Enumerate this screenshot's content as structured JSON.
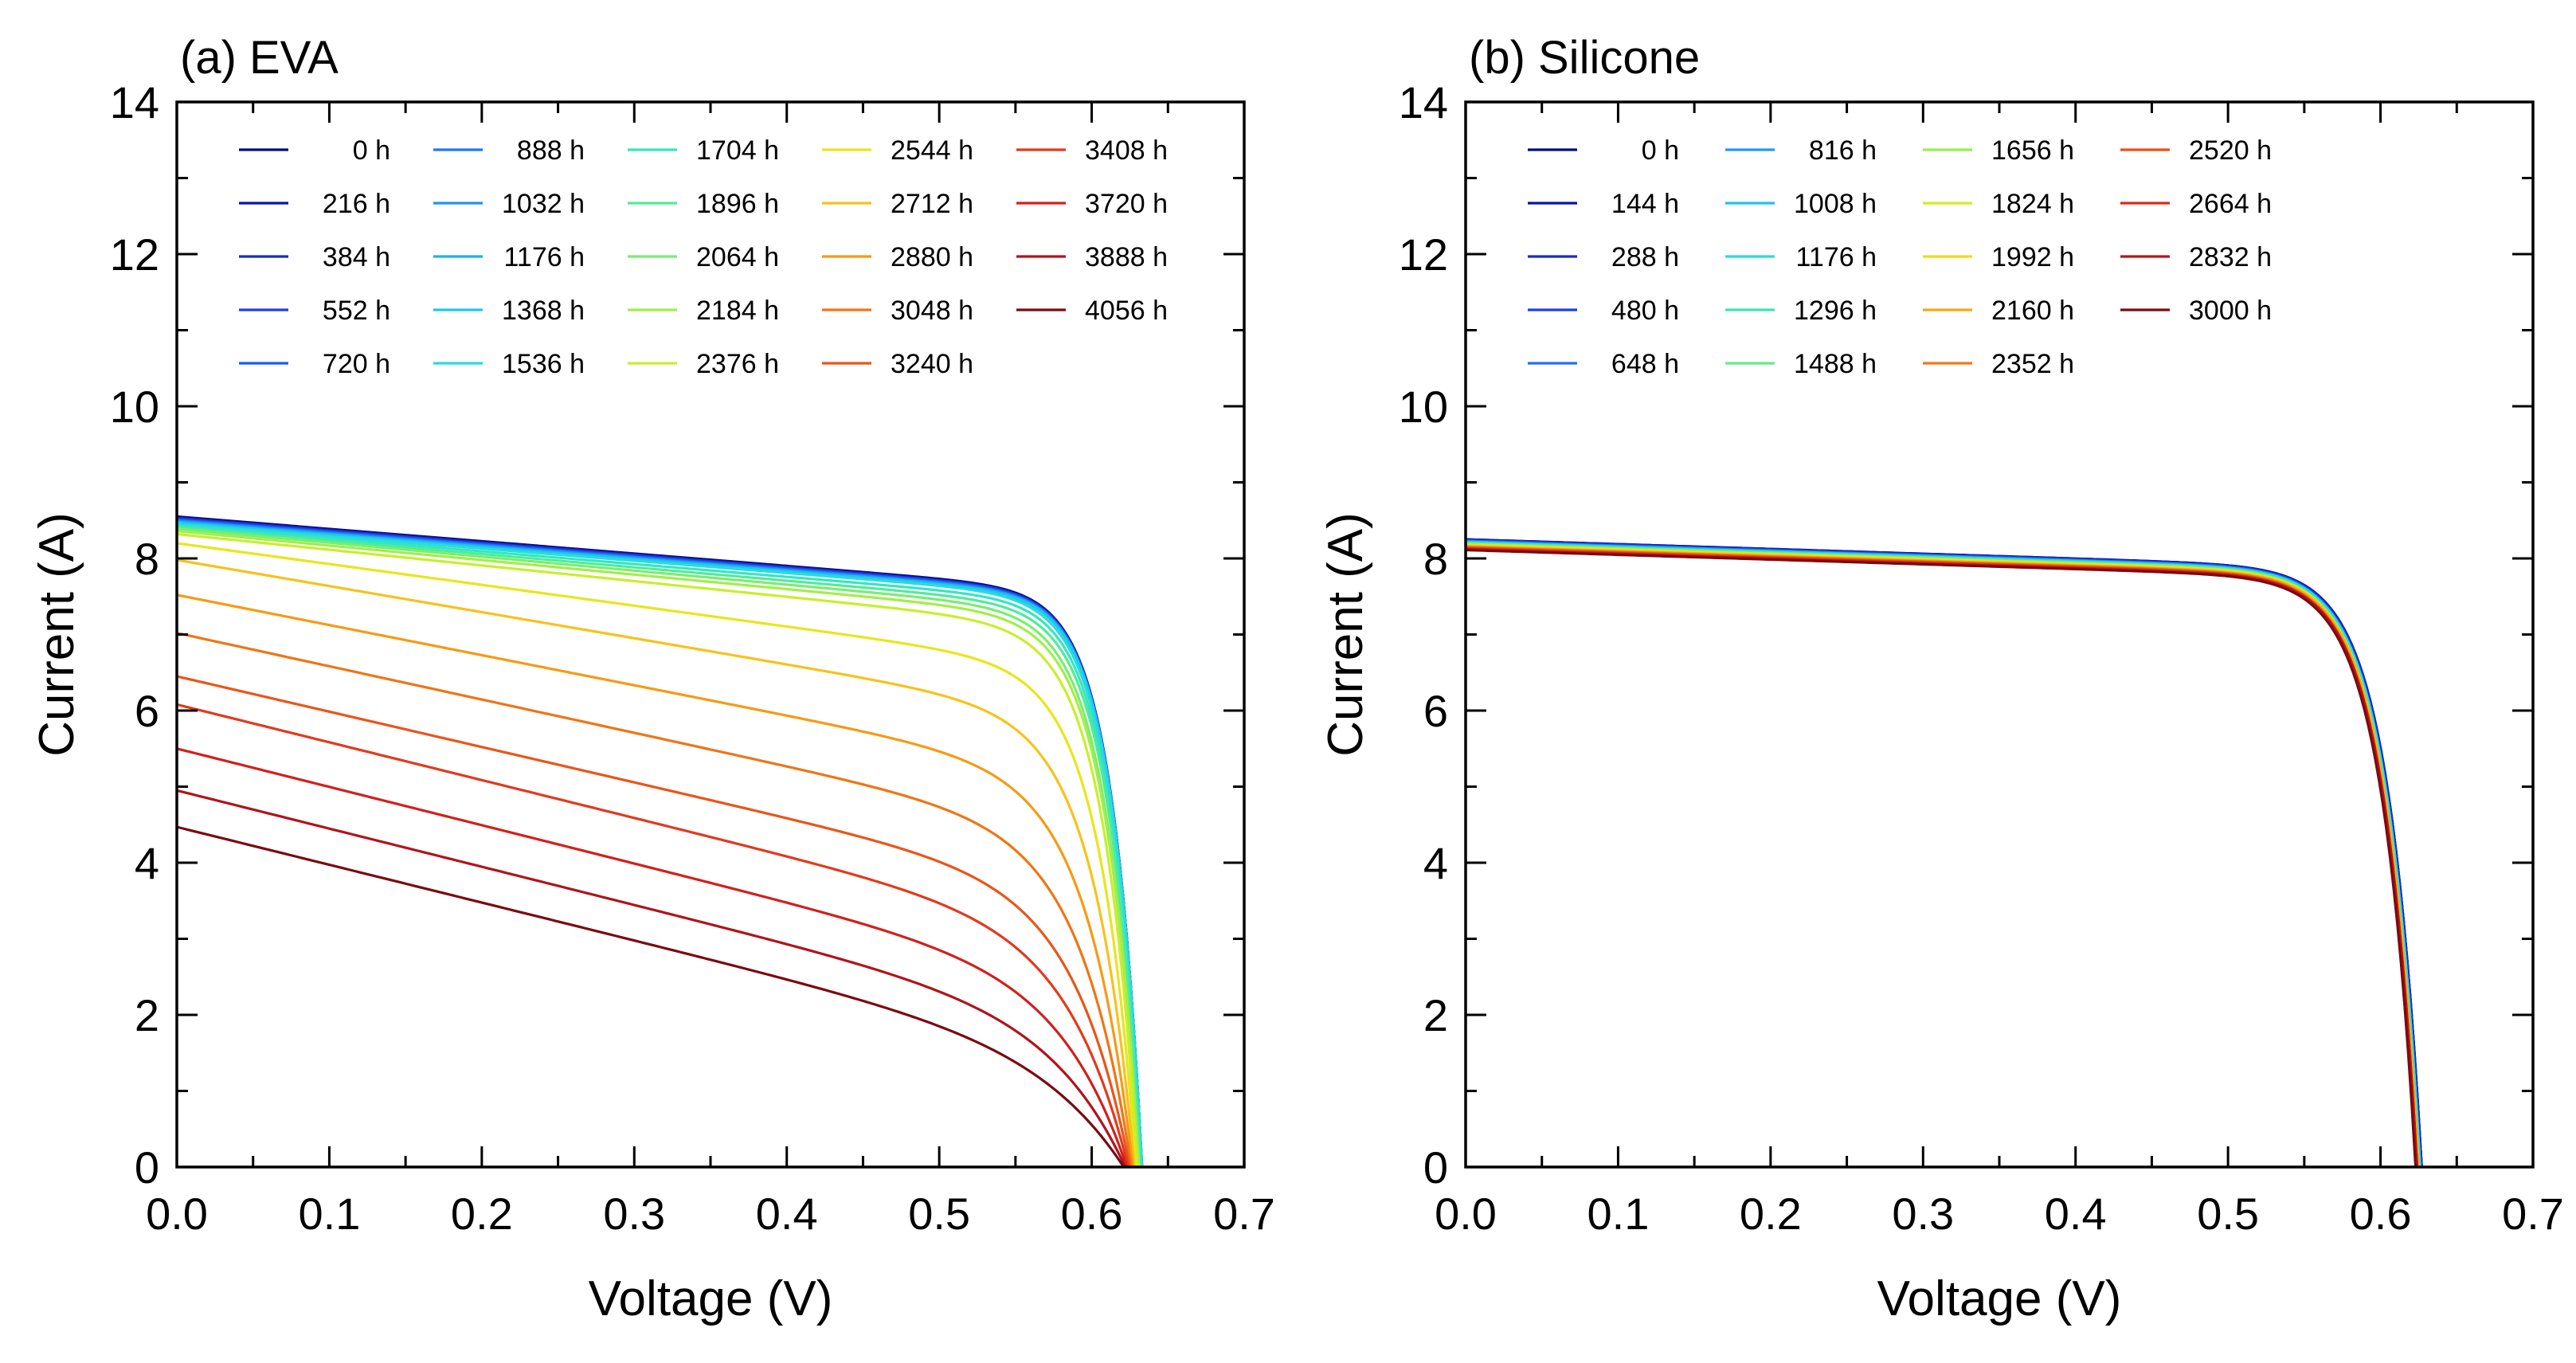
{
  "chart_data": [
    {
      "type": "line",
      "title": "(a) EVA",
      "xlabel": "Voltage (V)",
      "ylabel": "Current (A)",
      "xlim": [
        0.0,
        0.7
      ],
      "ylim": [
        0,
        14
      ],
      "xticks": [
        0.0,
        0.1,
        0.2,
        0.3,
        0.4,
        0.5,
        0.6,
        0.7
      ],
      "xtick_labels": [
        "0.0",
        "0.1",
        "0.2",
        "0.3",
        "0.4",
        "0.5",
        "0.6",
        "0.7"
      ],
      "yticks": [
        0,
        2,
        4,
        6,
        8,
        10,
        12,
        14
      ],
      "ytick_labels": [
        "0",
        "2",
        "4",
        "6",
        "8",
        "10",
        "12",
        "14"
      ],
      "legend_position": "top",
      "legend_columns": 5,
      "grid": false,
      "series": [
        {
          "name": "0 h",
          "color": "#000c7a",
          "isc": 8.55,
          "voc": 0.633,
          "s": 0.15,
          "k": 0.2
        },
        {
          "name": "216 h",
          "color": "#0a14a6",
          "isc": 8.54,
          "voc": 0.633,
          "s": 0.15,
          "k": 0.2
        },
        {
          "name": "384 h",
          "color": "#1a2bc8",
          "isc": 8.53,
          "voc": 0.633,
          "s": 0.15,
          "k": 0.2
        },
        {
          "name": "552 h",
          "color": "#1f3fe0",
          "isc": 8.52,
          "voc": 0.633,
          "s": 0.15,
          "k": 0.2
        },
        {
          "name": "720 h",
          "color": "#1a5cf2",
          "isc": 8.51,
          "voc": 0.633,
          "s": 0.15,
          "k": 0.2
        },
        {
          "name": "888 h",
          "color": "#1f78f5",
          "isc": 8.5,
          "voc": 0.633,
          "s": 0.15,
          "k": 0.2
        },
        {
          "name": "1032 h",
          "color": "#1f95f2",
          "isc": 8.49,
          "voc": 0.633,
          "s": 0.15,
          "k": 0.2
        },
        {
          "name": "1176 h",
          "color": "#1fb0ee",
          "isc": 8.48,
          "voc": 0.633,
          "s": 0.15,
          "k": 0.2
        },
        {
          "name": "1368 h",
          "color": "#1fc8e8",
          "isc": 8.47,
          "voc": 0.633,
          "s": 0.15,
          "k": 0.2
        },
        {
          "name": "1536 h",
          "color": "#28dcdc",
          "isc": 8.45,
          "voc": 0.633,
          "s": 0.16,
          "k": 0.2
        },
        {
          "name": "1704 h",
          "color": "#34e6c0",
          "isc": 8.43,
          "voc": 0.632,
          "s": 0.16,
          "k": 0.21
        },
        {
          "name": "1896 h",
          "color": "#50eb9a",
          "isc": 8.41,
          "voc": 0.632,
          "s": 0.17,
          "k": 0.22
        },
        {
          "name": "2064 h",
          "color": "#78ee70",
          "isc": 8.39,
          "voc": 0.631,
          "s": 0.18,
          "k": 0.23
        },
        {
          "name": "2184 h",
          "color": "#a2ee4a",
          "isc": 8.36,
          "voc": 0.631,
          "s": 0.19,
          "k": 0.24
        },
        {
          "name": "2376 h",
          "color": "#c8ef2c",
          "isc": 8.32,
          "voc": 0.63,
          "s": 0.2,
          "k": 0.26
        },
        {
          "name": "2544 h",
          "color": "#e8e61a",
          "isc": 8.2,
          "voc": 0.629,
          "s": 0.23,
          "k": 0.35
        },
        {
          "name": "2712 h",
          "color": "#f7c21a",
          "isc": 7.98,
          "voc": 0.628,
          "s": 0.28,
          "k": 0.45
        },
        {
          "name": "2880 h",
          "color": "#f79a12",
          "isc": 7.52,
          "voc": 0.627,
          "s": 0.33,
          "k": 0.55
        },
        {
          "name": "3048 h",
          "color": "#ef7514",
          "isc": 7.02,
          "voc": 0.626,
          "s": 0.38,
          "k": 0.65
        },
        {
          "name": "3240 h",
          "color": "#ea5518",
          "isc": 6.45,
          "voc": 0.625,
          "s": 0.42,
          "k": 0.75
        },
        {
          "name": "3408 h",
          "color": "#e23a1c",
          "isc": 6.08,
          "voc": 0.624,
          "s": 0.46,
          "k": 0.85
        },
        {
          "name": "3720 h",
          "color": "#d2201c",
          "isc": 5.5,
          "voc": 0.623,
          "s": 0.5,
          "k": 0.95
        },
        {
          "name": "3888 h",
          "color": "#b0141c",
          "isc": 4.95,
          "voc": 0.622,
          "s": 0.55,
          "k": 1.05
        },
        {
          "name": "4056 h",
          "color": "#7a0a12",
          "isc": 4.47,
          "voc": 0.621,
          "s": 0.6,
          "k": 1.15
        }
      ]
    },
    {
      "type": "line",
      "title": "(b) Silicone",
      "xlabel": "Voltage (V)",
      "ylabel": "Current (A)",
      "xlim": [
        0.0,
        0.7
      ],
      "ylim": [
        0,
        14
      ],
      "xticks": [
        0.0,
        0.1,
        0.2,
        0.3,
        0.4,
        0.5,
        0.6,
        0.7
      ],
      "xtick_labels": [
        "0.0",
        "0.1",
        "0.2",
        "0.3",
        "0.4",
        "0.5",
        "0.6",
        "0.7"
      ],
      "yticks": [
        0,
        2,
        4,
        6,
        8,
        10,
        12,
        14
      ],
      "ytick_labels": [
        "0",
        "2",
        "4",
        "6",
        "8",
        "10",
        "12",
        "14"
      ],
      "legend_position": "top",
      "legend_columns": 4,
      "grid": false,
      "series": [
        {
          "name": "0 h",
          "color": "#000c7a",
          "isc": 8.25,
          "voc": 0.627,
          "s": 0.2,
          "k": 0.08
        },
        {
          "name": "144 h",
          "color": "#0a14a6",
          "isc": 8.25,
          "voc": 0.627,
          "s": 0.2,
          "k": 0.08
        },
        {
          "name": "288 h",
          "color": "#1a2bc8",
          "isc": 8.24,
          "voc": 0.627,
          "s": 0.2,
          "k": 0.08
        },
        {
          "name": "480 h",
          "color": "#1f3fe0",
          "isc": 8.24,
          "voc": 0.626,
          "s": 0.2,
          "k": 0.08
        },
        {
          "name": "648 h",
          "color": "#1f70f2",
          "isc": 8.23,
          "voc": 0.626,
          "s": 0.2,
          "k": 0.08
        },
        {
          "name": "816 h",
          "color": "#1f9af0",
          "isc": 8.22,
          "voc": 0.626,
          "s": 0.2,
          "k": 0.08
        },
        {
          "name": "1008 h",
          "color": "#1fc4ea",
          "isc": 8.22,
          "voc": 0.626,
          "s": 0.2,
          "k": 0.08
        },
        {
          "name": "1176 h",
          "color": "#28dcd8",
          "isc": 8.21,
          "voc": 0.626,
          "s": 0.2,
          "k": 0.08
        },
        {
          "name": "1296 h",
          "color": "#3ce4b4",
          "isc": 8.2,
          "voc": 0.625,
          "s": 0.2,
          "k": 0.08
        },
        {
          "name": "1488 h",
          "color": "#64ec88",
          "isc": 8.2,
          "voc": 0.625,
          "s": 0.2,
          "k": 0.08
        },
        {
          "name": "1656 h",
          "color": "#9aee50",
          "isc": 8.19,
          "voc": 0.625,
          "s": 0.2,
          "k": 0.08
        },
        {
          "name": "1824 h",
          "color": "#d2ee22",
          "isc": 8.18,
          "voc": 0.625,
          "s": 0.2,
          "k": 0.08
        },
        {
          "name": "1992 h",
          "color": "#f0da1a",
          "isc": 8.17,
          "voc": 0.625,
          "s": 0.2,
          "k": 0.08
        },
        {
          "name": "2160 h",
          "color": "#f7a814",
          "isc": 8.16,
          "voc": 0.625,
          "s": 0.2,
          "k": 0.08
        },
        {
          "name": "2352 h",
          "color": "#f07a14",
          "isc": 8.15,
          "voc": 0.624,
          "s": 0.2,
          "k": 0.08
        },
        {
          "name": "2520 h",
          "color": "#e85018",
          "isc": 8.14,
          "voc": 0.624,
          "s": 0.2,
          "k": 0.08
        },
        {
          "name": "2664 h",
          "color": "#d82a1c",
          "isc": 8.13,
          "voc": 0.624,
          "s": 0.2,
          "k": 0.08
        },
        {
          "name": "2832 h",
          "color": "#b4161c",
          "isc": 8.12,
          "voc": 0.624,
          "s": 0.2,
          "k": 0.08
        },
        {
          "name": "3000 h",
          "color": "#7a0a12",
          "isc": 8.11,
          "voc": 0.623,
          "s": 0.2,
          "k": 0.08
        }
      ]
    }
  ]
}
